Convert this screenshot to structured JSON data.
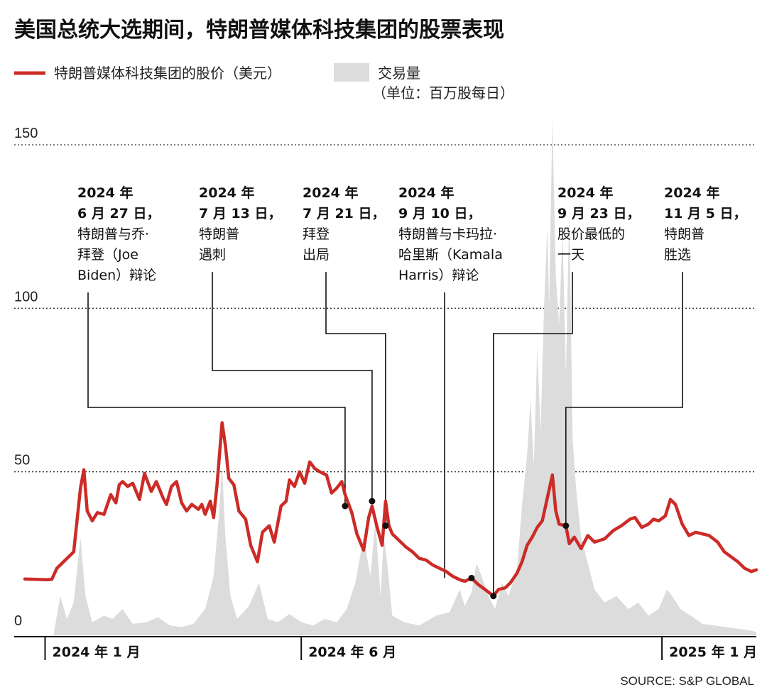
{
  "title": "美国总统大选期间，特朗普媒体科技集团的股票表现",
  "source": "SOURCE: S&P GLOBAL",
  "colors": {
    "price_line": "#cc2b27",
    "volume_fill": "#dcdcdc",
    "text": "#111111"
  },
  "chart_data": {
    "type": "line",
    "ylim": [
      0,
      150
    ],
    "yticks": [
      "150",
      "100",
      "50",
      "0"
    ],
    "ytick_values": [
      150,
      100,
      50,
      0
    ],
    "xlim": [
      "2023-12-20",
      "2025-02-26"
    ],
    "xticks": [
      {
        "date": "2024-01-01",
        "label": "2024 年 1 月"
      },
      {
        "date": "2024-06-01",
        "label": "2024 年 6 月"
      },
      {
        "date": "2025-01-01",
        "label": "2025 年 1 月"
      }
    ],
    "legend": {
      "price_label": "特朗普媒体科技集团的股价（美元）",
      "volume_label": "交易量",
      "volume_unit": "（单位：百万股每日）"
    },
    "series": [
      {
        "name": "特朗普媒体科技集团的股价（美元）",
        "kind": "line",
        "points": [
          [
            "2023-12-20",
            17.2
          ],
          [
            "2024-01-02",
            17.0
          ],
          [
            "2024-01-05",
            17.1
          ],
          [
            "2024-01-08",
            20.5
          ],
          [
            "2024-01-12",
            22.5
          ],
          [
            "2024-01-18",
            25.5
          ],
          [
            "2024-01-22",
            45.0
          ],
          [
            "2024-01-24",
            50.6
          ],
          [
            "2024-01-26",
            38.0
          ],
          [
            "2024-01-29",
            35.0
          ],
          [
            "2024-02-01",
            37.5
          ],
          [
            "2024-02-05",
            37.0
          ],
          [
            "2024-02-09",
            43.0
          ],
          [
            "2024-02-12",
            40.5
          ],
          [
            "2024-02-14",
            46.0
          ],
          [
            "2024-02-16",
            47.0
          ],
          [
            "2024-02-19",
            45.5
          ],
          [
            "2024-02-22",
            46.5
          ],
          [
            "2024-02-26",
            41.5
          ],
          [
            "2024-02-29",
            49.5
          ],
          [
            "2024-03-04",
            44.0
          ],
          [
            "2024-03-07",
            47.0
          ],
          [
            "2024-03-11",
            42.0
          ],
          [
            "2024-03-13",
            40.0
          ],
          [
            "2024-03-16",
            45.5
          ],
          [
            "2024-03-19",
            47.0
          ],
          [
            "2024-03-22",
            40.5
          ],
          [
            "2024-03-25",
            38.0
          ],
          [
            "2024-03-28",
            40.0
          ],
          [
            "2024-04-01",
            38.5
          ],
          [
            "2024-04-03",
            40.0
          ],
          [
            "2024-04-05",
            37.0
          ],
          [
            "2024-04-08",
            41.0
          ],
          [
            "2024-04-10",
            36.0
          ],
          [
            "2024-04-12",
            46.0
          ],
          [
            "2024-04-15",
            65.0
          ],
          [
            "2024-04-17",
            58.0
          ],
          [
            "2024-04-19",
            48.0
          ],
          [
            "2024-04-22",
            46.0
          ],
          [
            "2024-04-25",
            38.0
          ],
          [
            "2024-04-29",
            35.5
          ],
          [
            "2024-05-02",
            27.5
          ],
          [
            "2024-05-06",
            22.5
          ],
          [
            "2024-05-09",
            31.5
          ],
          [
            "2024-05-13",
            33.5
          ],
          [
            "2024-05-16",
            28.5
          ],
          [
            "2024-05-20",
            39.5
          ],
          [
            "2024-05-23",
            41.0
          ],
          [
            "2024-05-25",
            47.5
          ],
          [
            "2024-05-28",
            45.5
          ],
          [
            "2024-05-31",
            50.0
          ],
          [
            "2024-06-03",
            46.5
          ],
          [
            "2024-06-06",
            53.0
          ],
          [
            "2024-06-09",
            51.0
          ],
          [
            "2024-06-12",
            50.0
          ],
          [
            "2024-06-16",
            49.0
          ],
          [
            "2024-06-19",
            43.5
          ],
          [
            "2024-06-22",
            45.0
          ],
          [
            "2024-06-25",
            47.0
          ],
          [
            "2024-06-27",
            43.0
          ],
          [
            "2024-07-01",
            37.5
          ],
          [
            "2024-07-04",
            31.0
          ],
          [
            "2024-07-08",
            26.0
          ],
          [
            "2024-07-11",
            36.0
          ],
          [
            "2024-07-13",
            39.5
          ],
          [
            "2024-07-16",
            33.0
          ],
          [
            "2024-07-19",
            27.5
          ],
          [
            "2024-07-21",
            41.0
          ],
          [
            "2024-07-23",
            33.5
          ],
          [
            "2024-07-25",
            31.0
          ],
          [
            "2024-07-29",
            29.0
          ],
          [
            "2024-08-02",
            27.0
          ],
          [
            "2024-08-06",
            25.5
          ],
          [
            "2024-08-10",
            23.5
          ],
          [
            "2024-08-14",
            23.0
          ],
          [
            "2024-08-18",
            21.5
          ],
          [
            "2024-08-22",
            20.5
          ],
          [
            "2024-08-26",
            19.5
          ],
          [
            "2024-08-30",
            18.0
          ],
          [
            "2024-09-03",
            17.0
          ],
          [
            "2024-09-06",
            16.5
          ],
          [
            "2024-09-10",
            17.5
          ],
          [
            "2024-09-14",
            15.5
          ],
          [
            "2024-09-18",
            14.0
          ],
          [
            "2024-09-23",
            12.0
          ],
          [
            "2024-09-26",
            14.0
          ],
          [
            "2024-09-30",
            14.5
          ],
          [
            "2024-10-03",
            16.0
          ],
          [
            "2024-10-07",
            19.0
          ],
          [
            "2024-10-10",
            22.5
          ],
          [
            "2024-10-13",
            27.5
          ],
          [
            "2024-10-16",
            30.0
          ],
          [
            "2024-10-19",
            33.0
          ],
          [
            "2024-10-22",
            35.0
          ],
          [
            "2024-10-25",
            42.0
          ],
          [
            "2024-10-28",
            49.0
          ],
          [
            "2024-10-30",
            38.0
          ],
          [
            "2024-11-01",
            34.0
          ],
          [
            "2024-11-05",
            33.5
          ],
          [
            "2024-11-07",
            28.0
          ],
          [
            "2024-11-10",
            30.0
          ],
          [
            "2024-11-14",
            26.5
          ],
          [
            "2024-11-18",
            30.5
          ],
          [
            "2024-11-22",
            28.5
          ],
          [
            "2024-11-28",
            29.5
          ],
          [
            "2024-12-03",
            32.0
          ],
          [
            "2024-12-08",
            33.5
          ],
          [
            "2024-12-13",
            35.5
          ],
          [
            "2024-12-16",
            36.0
          ],
          [
            "2024-12-20",
            33.0
          ],
          [
            "2024-12-24",
            34.0
          ],
          [
            "2024-12-27",
            35.5
          ],
          [
            "2024-12-30",
            35.0
          ],
          [
            "2025-01-03",
            36.5
          ],
          [
            "2025-01-06",
            41.5
          ],
          [
            "2025-01-09",
            40.0
          ],
          [
            "2025-01-13",
            34.0
          ],
          [
            "2025-01-17",
            30.5
          ],
          [
            "2025-01-21",
            31.5
          ],
          [
            "2025-01-25",
            31.0
          ],
          [
            "2025-01-29",
            30.5
          ],
          [
            "2025-02-03",
            28.5
          ],
          [
            "2025-02-07",
            25.5
          ],
          [
            "2025-02-11",
            24.0
          ],
          [
            "2025-02-15",
            22.5
          ],
          [
            "2025-02-19",
            20.5
          ],
          [
            "2025-02-23",
            19.5
          ],
          [
            "2025-02-26",
            20.0
          ]
        ]
      },
      {
        "name": "交易量",
        "kind": "area",
        "unit": "（单位：百万股每日）",
        "points": [
          [
            "2023-12-20",
            0.0
          ],
          [
            "2024-01-06",
            0.0
          ],
          [
            "2024-01-10",
            12.0
          ],
          [
            "2024-01-14",
            5.0
          ],
          [
            "2024-01-18",
            10.0
          ],
          [
            "2024-01-22",
            30.0
          ],
          [
            "2024-01-25",
            12.0
          ],
          [
            "2024-01-29",
            4.0
          ],
          [
            "2024-02-05",
            6.0
          ],
          [
            "2024-02-10",
            5.0
          ],
          [
            "2024-02-16",
            8.0
          ],
          [
            "2024-02-22",
            3.5
          ],
          [
            "2024-03-01",
            4.0
          ],
          [
            "2024-03-08",
            5.5
          ],
          [
            "2024-03-15",
            3.0
          ],
          [
            "2024-03-22",
            2.5
          ],
          [
            "2024-03-29",
            3.5
          ],
          [
            "2024-04-05",
            8.0
          ],
          [
            "2024-04-10",
            18.0
          ],
          [
            "2024-04-13",
            36.0
          ],
          [
            "2024-04-15",
            52.0
          ],
          [
            "2024-04-17",
            30.0
          ],
          [
            "2024-04-20",
            12.0
          ],
          [
            "2024-04-24",
            5.0
          ],
          [
            "2024-05-01",
            9.0
          ],
          [
            "2024-05-07",
            16.0
          ],
          [
            "2024-05-12",
            5.0
          ],
          [
            "2024-05-18",
            4.0
          ],
          [
            "2024-05-25",
            6.5
          ],
          [
            "2024-06-01",
            4.0
          ],
          [
            "2024-06-08",
            3.0
          ],
          [
            "2024-06-15",
            5.0
          ],
          [
            "2024-06-22",
            4.0
          ],
          [
            "2024-06-28",
            8.0
          ],
          [
            "2024-07-03",
            16.0
          ],
          [
            "2024-07-08",
            30.0
          ],
          [
            "2024-07-12",
            18.0
          ],
          [
            "2024-07-15",
            35.0
          ],
          [
            "2024-07-18",
            12.0
          ],
          [
            "2024-07-20",
            30.0
          ],
          [
            "2024-07-22",
            22.0
          ],
          [
            "2024-07-25",
            6.0
          ],
          [
            "2024-08-01",
            4.0
          ],
          [
            "2024-08-10",
            3.0
          ],
          [
            "2024-08-20",
            6.0
          ],
          [
            "2024-08-28",
            7.0
          ],
          [
            "2024-09-03",
            14.0
          ],
          [
            "2024-09-06",
            9.0
          ],
          [
            "2024-09-10",
            13.0
          ],
          [
            "2024-09-13",
            22.0
          ],
          [
            "2024-09-16",
            18.0
          ],
          [
            "2024-09-20",
            12.0
          ],
          [
            "2024-09-24",
            8.0
          ],
          [
            "2024-09-28",
            16.0
          ],
          [
            "2024-10-02",
            12.0
          ],
          [
            "2024-10-07",
            20.0
          ],
          [
            "2024-10-10",
            40.0
          ],
          [
            "2024-10-13",
            55.0
          ],
          [
            "2024-10-15",
            72.0
          ],
          [
            "2024-10-17",
            52.0
          ],
          [
            "2024-10-19",
            88.0
          ],
          [
            "2024-10-21",
            62.0
          ],
          [
            "2024-10-23",
            100.0
          ],
          [
            "2024-10-25",
            125.0
          ],
          [
            "2024-10-26",
            100.0
          ],
          [
            "2024-10-28",
            158.0
          ],
          [
            "2024-10-30",
            110.0
          ],
          [
            "2024-11-01",
            95.0
          ],
          [
            "2024-11-03",
            124.0
          ],
          [
            "2024-11-05",
            80.0
          ],
          [
            "2024-11-07",
            130.0
          ],
          [
            "2024-11-09",
            60.0
          ],
          [
            "2024-11-11",
            45.0
          ],
          [
            "2024-11-14",
            30.0
          ],
          [
            "2024-11-18",
            22.0
          ],
          [
            "2024-11-22",
            14.0
          ],
          [
            "2024-11-28",
            10.0
          ],
          [
            "2024-12-05",
            12.0
          ],
          [
            "2024-12-12",
            8.0
          ],
          [
            "2024-12-18",
            10.0
          ],
          [
            "2024-12-24",
            6.0
          ],
          [
            "2024-12-30",
            8.0
          ],
          [
            "2025-01-04",
            14.0
          ],
          [
            "2025-01-07",
            12.0
          ],
          [
            "2025-01-12",
            8.0
          ],
          [
            "2025-01-18",
            6.0
          ],
          [
            "2025-01-25",
            3.5
          ],
          [
            "2025-02-01",
            3.0
          ],
          [
            "2025-02-08",
            2.5
          ],
          [
            "2025-02-15",
            2.0
          ],
          [
            "2025-02-22",
            1.5
          ],
          [
            "2025-02-26",
            1.0
          ]
        ]
      }
    ],
    "annotations": [
      {
        "date_label": "2024 年",
        "date_label_2": "6 月 27 日，",
        "lines": [
          "特朗普与乔·",
          "拜登（Joe",
          "Biden）辩论"
        ],
        "date": "2024-06-27",
        "value": 39.5
      },
      {
        "date_label": "2024 年",
        "date_label_2": "7 月 13 日，",
        "lines": [
          "特朗普",
          "遇刺"
        ],
        "date": "2024-07-13",
        "value": 41.0
      },
      {
        "date_label": "2024 年",
        "date_label_2": "7 月 21 日，",
        "lines": [
          "拜登",
          "出局"
        ],
        "date": "2024-07-21",
        "value": 33.5
      },
      {
        "date_label": "2024 年",
        "date_label_2": "9 月 10 日，",
        "lines": [
          "特朗普与卡玛拉·",
          "哈里斯（Kamala",
          "Harris）辩论"
        ],
        "date": "2024-09-10",
        "value": 17.5
      },
      {
        "date_label": "2024 年",
        "date_label_2": "9 月 23 日，",
        "lines": [
          "股价最低的",
          "一天"
        ],
        "date": "2024-09-23",
        "value": 12.0
      },
      {
        "date_label": "2024 年",
        "date_label_2": "11 月 5 日，",
        "lines": [
          "特朗普",
          "胜选"
        ],
        "date": "2024-11-05",
        "value": 33.5
      }
    ]
  }
}
